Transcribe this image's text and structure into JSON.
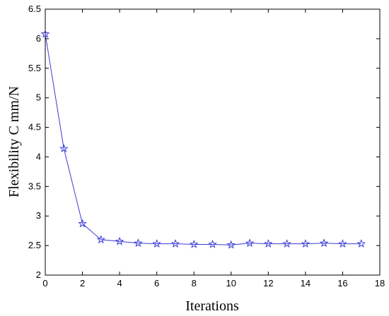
{
  "chart_data": {
    "type": "line",
    "xlabel": "Iterations",
    "ylabel": "Flexibility C mm/N",
    "xlim": [
      0,
      18
    ],
    "ylim": [
      2,
      6.5
    ],
    "xticks": [
      "0",
      "2",
      "4",
      "6",
      "8",
      "10",
      "12",
      "14",
      "16",
      "18"
    ],
    "yticks": [
      "2",
      "2.5",
      "3",
      "3.5",
      "4",
      "4.5",
      "5",
      "5.5",
      "6",
      "6.5"
    ],
    "grid": false,
    "marker": "star",
    "color": "#3b3bd6",
    "series": [
      {
        "x": [
          0,
          1,
          2,
          3,
          4,
          5,
          6,
          7,
          8,
          9,
          10,
          11,
          12,
          13,
          14,
          15,
          16,
          17
        ],
        "y": [
          6.08,
          4.14,
          2.87,
          2.6,
          2.57,
          2.54,
          2.53,
          2.53,
          2.52,
          2.52,
          2.51,
          2.54,
          2.53,
          2.53,
          2.53,
          2.54,
          2.53,
          2.53
        ]
      }
    ]
  }
}
